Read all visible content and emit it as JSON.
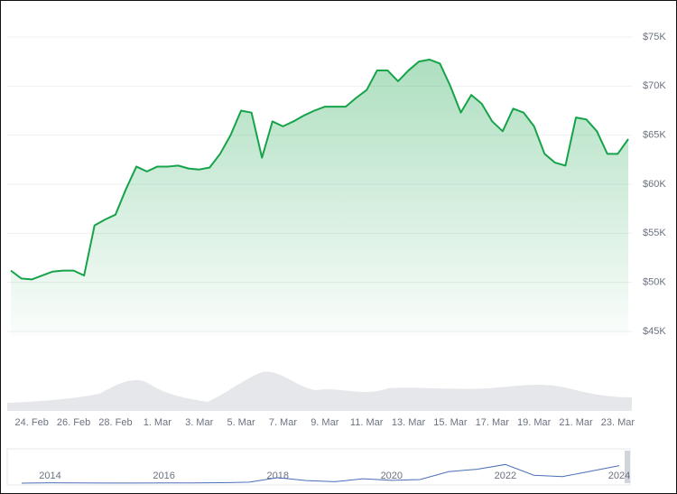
{
  "chart_data": [
    {
      "type": "area",
      "categories": [
        null,
        null,
        "24. Feb",
        null,
        null,
        null,
        "26. Feb",
        null,
        null,
        null,
        "28. Feb",
        null,
        null,
        null,
        "1. Mar",
        null,
        null,
        null,
        "3. Mar",
        null,
        null,
        null,
        "5. Mar",
        null,
        null,
        null,
        "7. Mar",
        null,
        null,
        null,
        "9. Mar",
        null,
        null,
        null,
        "11. Mar",
        null,
        null,
        null,
        "13. Mar",
        null,
        null,
        null,
        "15. Mar",
        null,
        null,
        null,
        "17. Mar",
        null,
        null,
        null,
        "19. Mar",
        null,
        null,
        null,
        "21. Mar",
        null,
        null,
        null,
        "23. Mar",
        null
      ],
      "values": [
        51200,
        50400,
        50300,
        50700,
        51100,
        51200,
        51200,
        50700,
        55800,
        56400,
        56900,
        59500,
        61800,
        61300,
        61800,
        61800,
        61900,
        61600,
        61500,
        61700,
        63100,
        65000,
        67500,
        67300,
        62700,
        66400,
        65900,
        66400,
        67000,
        67500,
        67900,
        67900,
        67900,
        68800,
        69600,
        71600,
        71600,
        70500,
        71600,
        72500,
        72700,
        72300,
        70000,
        67300,
        69100,
        68200,
        66400,
        65400,
        67700,
        67300,
        65900,
        63100,
        62200,
        61900,
        66800,
        66600,
        65400,
        63100,
        63100,
        64600
      ],
      "color": "#16a34a",
      "ylim": [
        45000,
        75000
      ],
      "yticks": [
        {
          "value": 45000,
          "label": "$45K"
        },
        {
          "value": 50000,
          "label": "$50K"
        },
        {
          "value": 55000,
          "label": "$55K"
        },
        {
          "value": 60000,
          "label": "$60K"
        },
        {
          "value": 65000,
          "label": "$65K"
        },
        {
          "value": 70000,
          "label": "$70K"
        },
        {
          "value": 75000,
          "label": "$75K"
        }
      ],
      "grid": true
    },
    {
      "type": "line",
      "categories": [
        null,
        "2014",
        null,
        null,
        null,
        "2016",
        null,
        null,
        null,
        "2018",
        null,
        null,
        null,
        "2020",
        null,
        null,
        null,
        "2022",
        null,
        null,
        null,
        "2024"
      ],
      "values": [
        100,
        800,
        600,
        300,
        250,
        430,
        650,
        1000,
        2500,
        14000,
        6400,
        3700,
        11000,
        7200,
        9200,
        29000,
        35000,
        47000,
        20000,
        16500,
        30000,
        44000
      ],
      "color": "#4a6fb5",
      "ylim": [
        0,
        75000
      ]
    }
  ]
}
